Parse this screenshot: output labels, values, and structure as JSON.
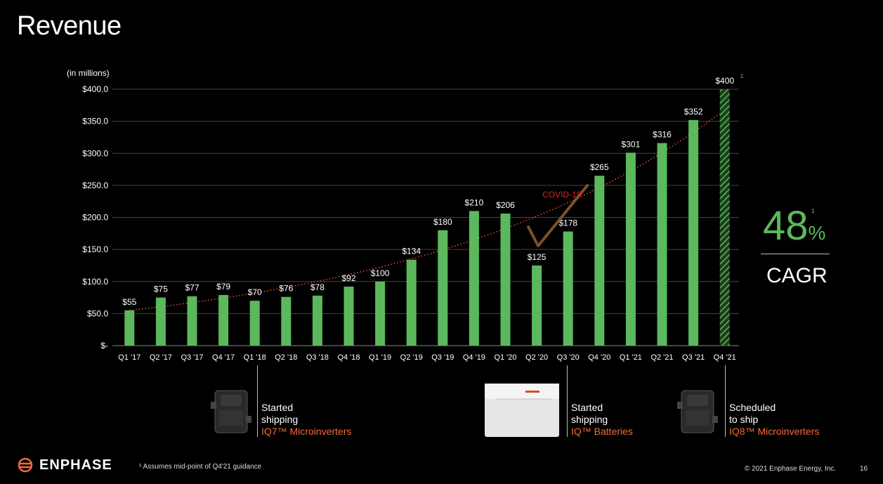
{
  "title": "Revenue",
  "chart_data": {
    "type": "bar",
    "unit_label": "(in millions)",
    "categories": [
      "Q1 '17",
      "Q2 '17",
      "Q3 '17",
      "Q4 '17",
      "Q1 '18",
      "Q2 '18",
      "Q3 '18",
      "Q4 '18",
      "Q1 '19",
      "Q2 '19",
      "Q3 '19",
      "Q4 '19",
      "Q1 '20",
      "Q2 '20",
      "Q3 '20",
      "Q4 '20",
      "Q1 '21",
      "Q2 '21",
      "Q3 '21",
      "Q4 '21"
    ],
    "values": [
      55,
      75,
      77,
      79,
      70,
      76,
      78,
      92,
      100,
      134,
      180,
      210,
      206,
      125,
      178,
      265,
      301,
      316,
      352,
      400
    ],
    "data_labels": [
      "$55",
      "$75",
      "$77",
      "$79",
      "$70",
      "$76",
      "$78",
      "$92",
      "$100",
      "$134",
      "$180",
      "$210",
      "$206",
      "$125",
      "$178",
      "$265",
      "$301",
      "$316",
      "$352",
      "$400"
    ],
    "last_bar_footnote": "1",
    "hatched_index": 19,
    "ylim": [
      0,
      400
    ],
    "yticks": [
      0,
      50,
      100,
      150,
      200,
      250,
      300,
      350,
      400
    ],
    "ytick_labels": [
      "$-",
      "$50.0",
      "$100.0",
      "$150.0",
      "$200.0",
      "$250.0",
      "$300.0",
      "$350.0",
      "$400.0"
    ],
    "grid": true,
    "trendline": "exponential, dotted",
    "annotation": {
      "text": "COVID-19",
      "near": "Q2 '20"
    },
    "colors": {
      "bar": "#5cb85c",
      "trend": "#e8542a",
      "annotation": "#e02020",
      "check": "#8a5a2b",
      "grid": "#444444"
    }
  },
  "cagr": {
    "value": "48",
    "suffix": "%",
    "footnote": "1",
    "label": "CAGR"
  },
  "milestones": [
    {
      "line1": "Started",
      "line2": "shipping",
      "line3": "IQ7™ Microinverters"
    },
    {
      "line1": "Started",
      "line2": "shipping",
      "line3": "IQ™ Batteries"
    },
    {
      "line1": "Scheduled",
      "line2": "to ship",
      "line3": "IQ8™ Microinverters"
    }
  ],
  "footer": {
    "logo_text": "ENPHASE",
    "footnote": "¹ Assumes mid-point of Q4'21 guidance",
    "copyright": "© 2021 Enphase Energy, Inc.",
    "page": "16"
  }
}
